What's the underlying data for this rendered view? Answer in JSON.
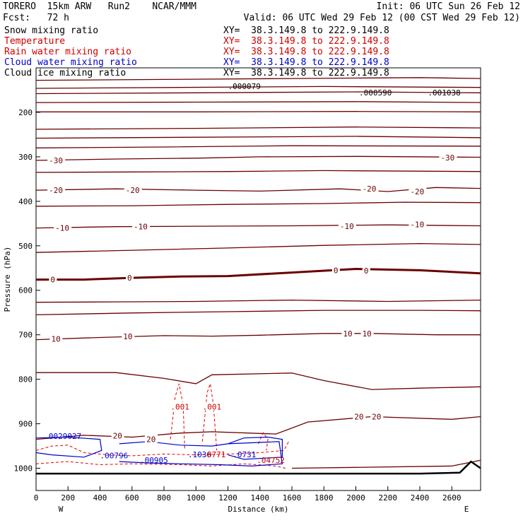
{
  "header": {
    "line1_left": "TORERO  15km ARW   Run2    NCAR/MMM",
    "line1_right": "Init: 06 UTC Sun 26 Feb 12",
    "line2_left": "Fcst:   72 h",
    "line2_right": "Valid: 06 UTC Wed 29 Feb 12 (00 CST Wed 29 Feb 12)",
    "fields": [
      {
        "label": "Snow mixing ratio",
        "xy": "XY=  38.3.149.8 to 222.9.149.8",
        "color": "#000000"
      },
      {
        "label": "Temperature",
        "xy": "XY=  38.3.149.8 to 222.9.149.8",
        "color": "#cc0000"
      },
      {
        "label": "Rain water mixing ratio",
        "xy": "XY=  38.3.149.8 to 222.9.149.8",
        "color": "#cc0000"
      },
      {
        "label": "Cloud water mixing ratio",
        "xy": "XY=  38.3.149.8 to 222.9.149.8",
        "color": "#0000cc"
      },
      {
        "label": "Cloud ice mixing ratio",
        "xy": "XY=  38.3.149.8 to 222.9.149.8",
        "color": "#000000"
      }
    ]
  },
  "chart_data": {
    "type": "line",
    "xlabel": "Distance (km)",
    "ylabel": "Pressure (hPa)",
    "xlim": [
      0,
      2780
    ],
    "ylim": [
      1050,
      100
    ],
    "xticks": [
      0,
      200,
      400,
      600,
      800,
      1000,
      1200,
      1400,
      1600,
      1800,
      2000,
      2200,
      2400,
      2600
    ],
    "yticks": [
      200,
      300,
      400,
      500,
      600,
      700,
      800,
      900,
      1000
    ],
    "x_end_labels": {
      "left": "W",
      "right": "E"
    },
    "temperature_contours": [
      {
        "points": [
          [
            0,
            128
          ],
          [
            800,
            126
          ],
          [
            1600,
            124
          ],
          [
            2400,
            122
          ],
          [
            2780,
            124
          ]
        ]
      },
      {
        "points": [
          [
            0,
            146
          ],
          [
            900,
            144
          ],
          [
            1800,
            142
          ],
          [
            2780,
            144
          ]
        ]
      },
      {
        "points": [
          [
            0,
            158
          ],
          [
            1000,
            156
          ],
          [
            2000,
            154
          ],
          [
            2780,
            156
          ]
        ]
      },
      {
        "points": [
          [
            0,
            178
          ],
          [
            1000,
            177
          ],
          [
            2000,
            176
          ],
          [
            2780,
            178
          ]
        ]
      },
      {
        "points": [
          [
            0,
            199
          ],
          [
            1000,
            199
          ],
          [
            2000,
            198
          ],
          [
            2780,
            199
          ]
        ]
      },
      {
        "points": [
          [
            0,
            238
          ],
          [
            1000,
            236
          ],
          [
            2000,
            233
          ],
          [
            2780,
            235
          ]
        ]
      },
      {
        "points": [
          [
            0,
            258
          ],
          [
            1000,
            256
          ],
          [
            2000,
            254
          ],
          [
            2780,
            257
          ]
        ]
      },
      {
        "points": [
          [
            0,
            280
          ],
          [
            800,
            278
          ],
          [
            1600,
            275
          ],
          [
            2780,
            276
          ]
        ]
      },
      {
        "points": [
          [
            0,
            308
          ],
          [
            500,
            305
          ],
          [
            1000,
            303
          ],
          [
            1400,
            300
          ],
          [
            2000,
            299
          ],
          [
            2780,
            301
          ]
        ],
        "label": "-30"
      },
      {
        "points": [
          [
            0,
            335
          ],
          [
            600,
            334
          ],
          [
            1200,
            333
          ],
          [
            1800,
            331
          ],
          [
            2780,
            333
          ]
        ]
      },
      {
        "points": [
          [
            0,
            375
          ],
          [
            500,
            372
          ],
          [
            1000,
            375
          ],
          [
            1400,
            377
          ],
          [
            1900,
            372
          ],
          [
            2200,
            378
          ],
          [
            2500,
            369
          ],
          [
            2780,
            371
          ]
        ],
        "label": "-20"
      },
      {
        "points": [
          [
            0,
            411
          ],
          [
            600,
            410
          ],
          [
            1200,
            407
          ],
          [
            1800,
            405
          ],
          [
            2300,
            402
          ],
          [
            2780,
            403
          ]
        ]
      },
      {
        "points": [
          [
            0,
            460
          ],
          [
            500,
            457
          ],
          [
            1000,
            456
          ],
          [
            1600,
            455
          ],
          [
            2200,
            453
          ],
          [
            2780,
            455
          ]
        ],
        "label": "-10"
      },
      {
        "points": [
          [
            0,
            515
          ],
          [
            600,
            510
          ],
          [
            1200,
            505
          ],
          [
            1800,
            499
          ],
          [
            2400,
            495
          ],
          [
            2780,
            497
          ]
        ]
      },
      {
        "points": [
          [
            0,
            576
          ],
          [
            300,
            576
          ],
          [
            600,
            572
          ],
          [
            900,
            569
          ],
          [
            1200,
            568
          ],
          [
            1600,
            560
          ],
          [
            2000,
            552
          ],
          [
            2400,
            555
          ],
          [
            2780,
            562
          ]
        ],
        "label": "0",
        "bold": true
      },
      {
        "points": [
          [
            0,
            627
          ],
          [
            500,
            626
          ],
          [
            1000,
            625
          ],
          [
            1600,
            622
          ],
          [
            2200,
            625
          ],
          [
            2780,
            622
          ]
        ]
      },
      {
        "points": [
          [
            0,
            655
          ],
          [
            600,
            651
          ],
          [
            1200,
            648
          ],
          [
            1800,
            645
          ],
          [
            2400,
            645
          ],
          [
            2780,
            646
          ]
        ]
      },
      {
        "points": [
          [
            0,
            711
          ],
          [
            400,
            706
          ],
          [
            800,
            702
          ],
          [
            1100,
            703
          ],
          [
            1400,
            701
          ],
          [
            1800,
            697
          ],
          [
            2100,
            697
          ],
          [
            2500,
            700
          ],
          [
            2780,
            700
          ]
        ],
        "label": "10"
      },
      {
        "points": [
          [
            0,
            785
          ],
          [
            500,
            785
          ],
          [
            800,
            798
          ],
          [
            1000,
            810
          ],
          [
            1100,
            790
          ],
          [
            1600,
            786
          ],
          [
            1800,
            803
          ],
          [
            2100,
            823
          ],
          [
            2400,
            820
          ],
          [
            2780,
            817
          ]
        ]
      },
      {
        "points": [
          [
            0,
            935
          ],
          [
            300,
            926
          ],
          [
            600,
            930
          ],
          [
            900,
            921
          ],
          [
            1100,
            918
          ],
          [
            1500,
            923
          ],
          [
            1700,
            896
          ],
          [
            2100,
            884
          ],
          [
            2600,
            890
          ],
          [
            2780,
            884
          ]
        ],
        "label": "20"
      },
      {
        "points": [
          [
            1600,
            1000
          ],
          [
            2000,
            998
          ],
          [
            2600,
            995
          ],
          [
            2780,
            982
          ]
        ]
      }
    ],
    "temperature_labels": [
      {
        "x": 80,
        "p": 308,
        "text": "-30"
      },
      {
        "x": 2530,
        "p": 302,
        "text": "-30"
      },
      {
        "x": 80,
        "p": 375,
        "text": "-20"
      },
      {
        "x": 560,
        "p": 375,
        "text": "-20"
      },
      {
        "x": 2040,
        "p": 372,
        "text": "-20"
      },
      {
        "x": 2340,
        "p": 378,
        "text": "-20"
      },
      {
        "x": 120,
        "p": 460,
        "text": "-10"
      },
      {
        "x": 610,
        "p": 457,
        "text": "-10"
      },
      {
        "x": 1900,
        "p": 456,
        "text": "-10"
      },
      {
        "x": 2340,
        "p": 452,
        "text": "-10"
      },
      {
        "x": 90,
        "p": 576,
        "text": "0"
      },
      {
        "x": 570,
        "p": 572,
        "text": "0"
      },
      {
        "x": 1860,
        "p": 555,
        "text": "0"
      },
      {
        "x": 2050,
        "p": 556,
        "text": "0"
      },
      {
        "x": 95,
        "p": 709,
        "text": "10"
      },
      {
        "x": 545,
        "p": 704,
        "text": "10"
      },
      {
        "x": 1920,
        "p": 697,
        "text": "10"
      },
      {
        "x": 2040,
        "p": 697,
        "text": "10"
      },
      {
        "x": 480,
        "p": 927,
        "text": "20"
      },
      {
        "x": 690,
        "p": 935,
        "text": "20"
      },
      {
        "x": 1990,
        "p": 884,
        "text": "20"
      },
      {
        "x": 2100,
        "p": 884,
        "text": "20"
      }
    ],
    "rain_water_contours": [
      {
        "points": [
          [
            840,
            935
          ],
          [
            870,
            840
          ],
          [
            895,
            810
          ],
          [
            920,
            860
          ],
          [
            930,
            960
          ]
        ]
      },
      {
        "points": [
          [
            1040,
            940
          ],
          [
            1070,
            830
          ],
          [
            1090,
            810
          ],
          [
            1110,
            860
          ],
          [
            1130,
            960
          ]
        ]
      },
      {
        "points": [
          [
            0,
            960
          ],
          [
            100,
            950
          ],
          [
            200,
            948
          ],
          [
            300,
            965
          ],
          [
            450,
            970
          ],
          [
            600,
            972
          ],
          [
            800,
            968
          ],
          [
            1000,
            970
          ],
          [
            1200,
            968
          ],
          [
            1400,
            965
          ],
          [
            1550,
            960
          ],
          [
            1580,
            940
          ]
        ]
      },
      {
        "points": [
          [
            0,
            990
          ],
          [
            200,
            985
          ],
          [
            400,
            992
          ],
          [
            600,
            990
          ],
          [
            900,
            992
          ],
          [
            1100,
            995
          ],
          [
            1300,
            990
          ],
          [
            1500,
            995
          ],
          [
            1560,
            1000
          ]
        ]
      },
      {
        "points": [
          [
            1390,
            945
          ],
          [
            1420,
            920
          ],
          [
            1450,
            935
          ],
          [
            1440,
            960
          ]
        ]
      }
    ],
    "rain_water_labels": [
      {
        "x": 890,
        "p": 862,
        "text": ".001"
      },
      {
        "x": 1090,
        "p": 862,
        "text": ".001"
      }
    ],
    "cloud_water_contours": [
      {
        "points": [
          [
            0,
            932
          ],
          [
            200,
            930
          ],
          [
            400,
            935
          ],
          [
            410,
            960
          ],
          [
            300,
            975
          ],
          [
            100,
            970
          ],
          [
            0,
            965
          ]
        ]
      },
      {
        "points": [
          [
            520,
            945
          ],
          [
            700,
            940
          ],
          [
            900,
            948
          ],
          [
            1100,
            950
          ],
          [
            1200,
            945
          ],
          [
            1400,
            942
          ],
          [
            1520,
            940
          ],
          [
            1540,
            990
          ],
          [
            1350,
            995
          ],
          [
            1150,
            992
          ],
          [
            900,
            990
          ],
          [
            700,
            988
          ],
          [
            520,
            985
          ]
        ]
      },
      {
        "points": [
          [
            1200,
            945
          ],
          [
            1300,
            932
          ],
          [
            1450,
            930
          ],
          [
            1540,
            935
          ],
          [
            1540,
            975
          ],
          [
            1300,
            980
          ],
          [
            1200,
            970
          ]
        ]
      }
    ],
    "value_labels": [
      {
        "x": 50,
        "p": 934,
        "text": ".0029027",
        "color": "#0000cc"
      },
      {
        "x": 400,
        "p": 978,
        "text": ".00796",
        "color": "#0000cc"
      },
      {
        "x": 650,
        "p": 988,
        "text": ".00905",
        "color": "#0000cc"
      },
      {
        "x": 950,
        "p": 975,
        "text": ".1036",
        "color": "#0000cc"
      },
      {
        "x": 1040,
        "p": 975,
        "text": ".0771",
        "color": "#cc0000"
      },
      {
        "x": 1230,
        "p": 975,
        "text": ".0731",
        "color": "#0000cc"
      },
      {
        "x": 1380,
        "p": 988,
        "text": ".04752",
        "color": "#cc0000"
      },
      {
        "x": 1200,
        "p": 148,
        "text": ".000079",
        "color": "#000000"
      },
      {
        "x": 2020,
        "p": 162,
        "text": ".000590",
        "color": "#000000"
      },
      {
        "x": 2450,
        "p": 162,
        "text": ".001038",
        "color": "#000000"
      }
    ],
    "terrain": [
      [
        0,
        1012
      ],
      [
        600,
        1012
      ],
      [
        1200,
        1012
      ],
      [
        1800,
        1012
      ],
      [
        2400,
        1012
      ],
      [
        2650,
        1010
      ],
      [
        2720,
        985
      ],
      [
        2780,
        1000
      ]
    ]
  }
}
